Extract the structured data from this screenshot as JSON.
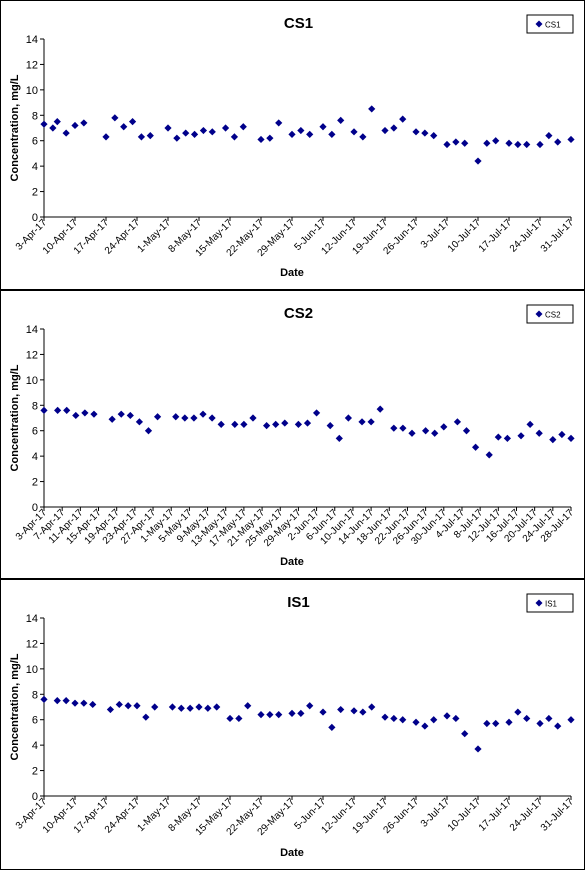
{
  "chart_data": [
    {
      "type": "scatter",
      "title": "CS1",
      "xlabel": "Date",
      "ylabel": "Concentration, mg/L",
      "ylim": [
        0,
        14
      ],
      "yticks": [
        0,
        2,
        4,
        6,
        8,
        10,
        12,
        14
      ],
      "xlim": [
        "3-Apr-17",
        "31-Jul-17"
      ],
      "xtick_labels": [
        "3-Apr-17",
        "10-Apr-17",
        "17-Apr-17",
        "24-Apr-17",
        "1-May-17",
        "8-May-17",
        "15-May-17",
        "22-May-17",
        "29-May-17",
        "5-Jun-17",
        "12-Jun-17",
        "19-Jun-17",
        "26-Jun-17",
        "3-Jul-17",
        "10-Jul-17",
        "17-Jul-17",
        "24-Jul-17",
        "31-Jul-17"
      ],
      "legend": "top-right",
      "grid": false,
      "marker_color": "#00008B",
      "series": [
        {
          "name": "CS1",
          "points": [
            {
              "x": "3-Apr-17",
              "y": 7.3
            },
            {
              "x": "5-Apr-17",
              "y": 7.0
            },
            {
              "x": "6-Apr-17",
              "y": 7.5
            },
            {
              "x": "8-Apr-17",
              "y": 6.6
            },
            {
              "x": "10-Apr-17",
              "y": 7.2
            },
            {
              "x": "12-Apr-17",
              "y": 7.4
            },
            {
              "x": "17-Apr-17",
              "y": 6.3
            },
            {
              "x": "19-Apr-17",
              "y": 7.8
            },
            {
              "x": "21-Apr-17",
              "y": 7.1
            },
            {
              "x": "23-Apr-17",
              "y": 7.5
            },
            {
              "x": "25-Apr-17",
              "y": 6.3
            },
            {
              "x": "27-Apr-17",
              "y": 6.4
            },
            {
              "x": "1-May-17",
              "y": 7.0
            },
            {
              "x": "3-May-17",
              "y": 6.2
            },
            {
              "x": "5-May-17",
              "y": 6.6
            },
            {
              "x": "7-May-17",
              "y": 6.5
            },
            {
              "x": "9-May-17",
              "y": 6.8
            },
            {
              "x": "11-May-17",
              "y": 6.7
            },
            {
              "x": "14-May-17",
              "y": 7.0
            },
            {
              "x": "16-May-17",
              "y": 6.3
            },
            {
              "x": "18-May-17",
              "y": 7.1
            },
            {
              "x": "22-May-17",
              "y": 6.1
            },
            {
              "x": "24-May-17",
              "y": 6.2
            },
            {
              "x": "26-May-17",
              "y": 7.4
            },
            {
              "x": "29-May-17",
              "y": 6.5
            },
            {
              "x": "31-May-17",
              "y": 6.8
            },
            {
              "x": "2-Jun-17",
              "y": 6.5
            },
            {
              "x": "5-Jun-17",
              "y": 7.1
            },
            {
              "x": "7-Jun-17",
              "y": 6.5
            },
            {
              "x": "9-Jun-17",
              "y": 7.6
            },
            {
              "x": "12-Jun-17",
              "y": 6.7
            },
            {
              "x": "14-Jun-17",
              "y": 6.3
            },
            {
              "x": "16-Jun-17",
              "y": 8.5
            },
            {
              "x": "19-Jun-17",
              "y": 6.8
            },
            {
              "x": "21-Jun-17",
              "y": 7.0
            },
            {
              "x": "23-Jun-17",
              "y": 7.7
            },
            {
              "x": "26-Jun-17",
              "y": 6.7
            },
            {
              "x": "28-Jun-17",
              "y": 6.6
            },
            {
              "x": "30-Jun-17",
              "y": 6.4
            },
            {
              "x": "3-Jul-17",
              "y": 5.7
            },
            {
              "x": "5-Jul-17",
              "y": 5.9
            },
            {
              "x": "7-Jul-17",
              "y": 5.8
            },
            {
              "x": "10-Jul-17",
              "y": 4.4
            },
            {
              "x": "12-Jul-17",
              "y": 5.8
            },
            {
              "x": "14-Jul-17",
              "y": 6.0
            },
            {
              "x": "17-Jul-17",
              "y": 5.8
            },
            {
              "x": "19-Jul-17",
              "y": 5.7
            },
            {
              "x": "21-Jul-17",
              "y": 5.7
            },
            {
              "x": "24-Jul-17",
              "y": 5.7
            },
            {
              "x": "26-Jul-17",
              "y": 6.4
            },
            {
              "x": "28-Jul-17",
              "y": 5.9
            },
            {
              "x": "31-Jul-17",
              "y": 6.1
            }
          ]
        }
      ]
    },
    {
      "type": "scatter",
      "title": "CS2",
      "xlabel": "Date",
      "ylabel": "Concentration, mg/L",
      "ylim": [
        0,
        14
      ],
      "yticks": [
        0,
        2,
        4,
        6,
        8,
        10,
        12,
        14
      ],
      "xlim": [
        "3-Apr-17",
        "28-Jul-17"
      ],
      "xtick_labels": [
        "3-Apr-17",
        "7-Apr-17",
        "11-Apr-17",
        "15-Apr-17",
        "19-Apr-17",
        "23-Apr-17",
        "27-Apr-17",
        "1-May-17",
        "5-May-17",
        "9-May-17",
        "13-May-17",
        "17-May-17",
        "21-May-17",
        "25-May-17",
        "29-May-17",
        "2-Jun-17",
        "6-Jun-17",
        "10-Jun-17",
        "14-Jun-17",
        "18-Jun-17",
        "22-Jun-17",
        "26-Jun-17",
        "30-Jun-17",
        "4-Jul-17",
        "8-Jul-17",
        "12-Jul-17",
        "16-Jul-17",
        "20-Jul-17",
        "24-Jul-17",
        "28-Jul-17"
      ],
      "legend": "top-right",
      "grid": false,
      "marker_color": "#00008B",
      "series": [
        {
          "name": "CS2",
          "points": [
            {
              "x": "3-Apr-17",
              "y": 7.6
            },
            {
              "x": "6-Apr-17",
              "y": 7.6
            },
            {
              "x": "8-Apr-17",
              "y": 7.6
            },
            {
              "x": "10-Apr-17",
              "y": 7.2
            },
            {
              "x": "12-Apr-17",
              "y": 7.4
            },
            {
              "x": "14-Apr-17",
              "y": 7.3
            },
            {
              "x": "18-Apr-17",
              "y": 6.9
            },
            {
              "x": "20-Apr-17",
              "y": 7.3
            },
            {
              "x": "22-Apr-17",
              "y": 7.2
            },
            {
              "x": "24-Apr-17",
              "y": 6.7
            },
            {
              "x": "26-Apr-17",
              "y": 6.0
            },
            {
              "x": "28-Apr-17",
              "y": 7.1
            },
            {
              "x": "2-May-17",
              "y": 7.1
            },
            {
              "x": "4-May-17",
              "y": 7.0
            },
            {
              "x": "6-May-17",
              "y": 7.0
            },
            {
              "x": "8-May-17",
              "y": 7.3
            },
            {
              "x": "10-May-17",
              "y": 7.0
            },
            {
              "x": "12-May-17",
              "y": 6.5
            },
            {
              "x": "15-May-17",
              "y": 6.5
            },
            {
              "x": "17-May-17",
              "y": 6.5
            },
            {
              "x": "19-May-17",
              "y": 7.0
            },
            {
              "x": "22-May-17",
              "y": 6.4
            },
            {
              "x": "24-May-17",
              "y": 6.5
            },
            {
              "x": "26-May-17",
              "y": 6.6
            },
            {
              "x": "29-May-17",
              "y": 6.5
            },
            {
              "x": "31-May-17",
              "y": 6.6
            },
            {
              "x": "2-Jun-17",
              "y": 7.4
            },
            {
              "x": "5-Jun-17",
              "y": 6.4
            },
            {
              "x": "7-Jun-17",
              "y": 5.4
            },
            {
              "x": "9-Jun-17",
              "y": 7.0
            },
            {
              "x": "12-Jun-17",
              "y": 6.7
            },
            {
              "x": "14-Jun-17",
              "y": 6.7
            },
            {
              "x": "16-Jun-17",
              "y": 7.7
            },
            {
              "x": "19-Jun-17",
              "y": 6.2
            },
            {
              "x": "21-Jun-17",
              "y": 6.2
            },
            {
              "x": "23-Jun-17",
              "y": 5.8
            },
            {
              "x": "26-Jun-17",
              "y": 6.0
            },
            {
              "x": "28-Jun-17",
              "y": 5.8
            },
            {
              "x": "30-Jun-17",
              "y": 6.3
            },
            {
              "x": "3-Jul-17",
              "y": 6.7
            },
            {
              "x": "5-Jul-17",
              "y": 6.0
            },
            {
              "x": "7-Jul-17",
              "y": 4.7
            },
            {
              "x": "10-Jul-17",
              "y": 4.1
            },
            {
              "x": "12-Jul-17",
              "y": 5.5
            },
            {
              "x": "14-Jul-17",
              "y": 5.4
            },
            {
              "x": "17-Jul-17",
              "y": 5.6
            },
            {
              "x": "19-Jul-17",
              "y": 6.5
            },
            {
              "x": "21-Jul-17",
              "y": 5.8
            },
            {
              "x": "24-Jul-17",
              "y": 5.3
            },
            {
              "x": "26-Jul-17",
              "y": 5.7
            },
            {
              "x": "28-Jul-17",
              "y": 5.4
            }
          ]
        }
      ]
    },
    {
      "type": "scatter",
      "title": "IS1",
      "xlabel": "Date",
      "ylabel": "Concentration, mg/L",
      "ylim": [
        0,
        14
      ],
      "yticks": [
        0,
        2,
        4,
        6,
        8,
        10,
        12,
        14
      ],
      "xlim": [
        "3-Apr-17",
        "31-Jul-17"
      ],
      "xtick_labels": [
        "3-Apr-17",
        "10-Apr-17",
        "17-Apr-17",
        "24-Apr-17",
        "1-May-17",
        "8-May-17",
        "15-May-17",
        "22-May-17",
        "29-May-17",
        "5-Jun-17",
        "12-Jun-17",
        "19-Jun-17",
        "26-Jun-17",
        "3-Jul-17",
        "10-Jul-17",
        "17-Jul-17",
        "24-Jul-17",
        "31-Jul-17"
      ],
      "legend": "top-right",
      "grid": false,
      "marker_color": "#00008B",
      "series": [
        {
          "name": "IS1",
          "points": [
            {
              "x": "3-Apr-17",
              "y": 7.6
            },
            {
              "x": "6-Apr-17",
              "y": 7.5
            },
            {
              "x": "8-Apr-17",
              "y": 7.5
            },
            {
              "x": "10-Apr-17",
              "y": 7.3
            },
            {
              "x": "12-Apr-17",
              "y": 7.3
            },
            {
              "x": "14-Apr-17",
              "y": 7.2
            },
            {
              "x": "18-Apr-17",
              "y": 6.8
            },
            {
              "x": "20-Apr-17",
              "y": 7.2
            },
            {
              "x": "22-Apr-17",
              "y": 7.1
            },
            {
              "x": "24-Apr-17",
              "y": 7.1
            },
            {
              "x": "26-Apr-17",
              "y": 6.2
            },
            {
              "x": "28-Apr-17",
              "y": 7.0
            },
            {
              "x": "2-May-17",
              "y": 7.0
            },
            {
              "x": "4-May-17",
              "y": 6.9
            },
            {
              "x": "6-May-17",
              "y": 6.9
            },
            {
              "x": "8-May-17",
              "y": 7.0
            },
            {
              "x": "10-May-17",
              "y": 6.9
            },
            {
              "x": "12-May-17",
              "y": 7.0
            },
            {
              "x": "15-May-17",
              "y": 6.1
            },
            {
              "x": "17-May-17",
              "y": 6.1
            },
            {
              "x": "19-May-17",
              "y": 7.1
            },
            {
              "x": "22-May-17",
              "y": 6.4
            },
            {
              "x": "24-May-17",
              "y": 6.4
            },
            {
              "x": "26-May-17",
              "y": 6.4
            },
            {
              "x": "29-May-17",
              "y": 6.5
            },
            {
              "x": "31-May-17",
              "y": 6.5
            },
            {
              "x": "2-Jun-17",
              "y": 7.1
            },
            {
              "x": "5-Jun-17",
              "y": 6.6
            },
            {
              "x": "7-Jun-17",
              "y": 5.4
            },
            {
              "x": "9-Jun-17",
              "y": 6.8
            },
            {
              "x": "12-Jun-17",
              "y": 6.7
            },
            {
              "x": "14-Jun-17",
              "y": 6.6
            },
            {
              "x": "16-Jun-17",
              "y": 7.0
            },
            {
              "x": "19-Jun-17",
              "y": 6.2
            },
            {
              "x": "21-Jun-17",
              "y": 6.1
            },
            {
              "x": "23-Jun-17",
              "y": 6.0
            },
            {
              "x": "26-Jun-17",
              "y": 5.8
            },
            {
              "x": "28-Jun-17",
              "y": 5.5
            },
            {
              "x": "30-Jun-17",
              "y": 6.0
            },
            {
              "x": "3-Jul-17",
              "y": 6.3
            },
            {
              "x": "5-Jul-17",
              "y": 6.1
            },
            {
              "x": "7-Jul-17",
              "y": 4.9
            },
            {
              "x": "10-Jul-17",
              "y": 3.7
            },
            {
              "x": "12-Jul-17",
              "y": 5.7
            },
            {
              "x": "14-Jul-17",
              "y": 5.7
            },
            {
              "x": "17-Jul-17",
              "y": 5.8
            },
            {
              "x": "19-Jul-17",
              "y": 6.6
            },
            {
              "x": "21-Jul-17",
              "y": 6.1
            },
            {
              "x": "24-Jul-17",
              "y": 5.7
            },
            {
              "x": "26-Jul-17",
              "y": 6.1
            },
            {
              "x": "28-Jul-17",
              "y": 5.5
            },
            {
              "x": "31-Jul-17",
              "y": 6.0
            }
          ]
        }
      ]
    }
  ]
}
